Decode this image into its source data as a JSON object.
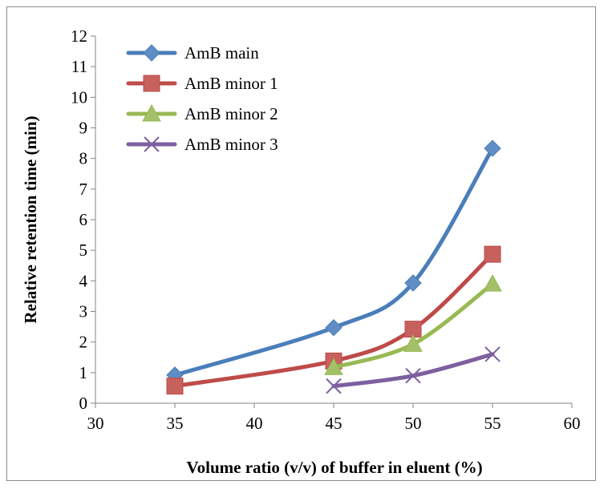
{
  "chart_data": {
    "type": "line",
    "title": "",
    "xlabel": "Volume ratio (v/v) of buffer in eluent (%)",
    "ylabel": "Relative retention time (min)",
    "xlim": [
      30,
      60
    ],
    "ylim": [
      0,
      12
    ],
    "xticks": [
      30,
      35,
      40,
      45,
      50,
      55,
      60
    ],
    "yticks": [
      0,
      1,
      2,
      3,
      4,
      5,
      6,
      7,
      8,
      9,
      10,
      11,
      12
    ],
    "grid": false,
    "legend_position": "top-left",
    "series": [
      {
        "name": "AmB main",
        "color": "#4a7ebb",
        "marker": "diamond",
        "points": [
          [
            35,
            0.92
          ],
          [
            45,
            2.47
          ],
          [
            50,
            3.93
          ],
          [
            55,
            8.33
          ]
        ]
      },
      {
        "name": "AmB minor 1",
        "color": "#be4b48",
        "marker": "square",
        "points": [
          [
            35,
            0.56
          ],
          [
            45,
            1.38
          ],
          [
            50,
            2.42
          ],
          [
            55,
            4.87
          ]
        ]
      },
      {
        "name": "AmB minor 2",
        "color": "#98b954",
        "marker": "triangle",
        "points": [
          [
            45,
            1.17
          ],
          [
            50,
            1.93
          ],
          [
            55,
            3.9
          ]
        ]
      },
      {
        "name": "AmB minor 3",
        "color": "#7d60a0",
        "marker": "x",
        "points": [
          [
            45,
            0.56
          ],
          [
            50,
            0.9
          ],
          [
            55,
            1.6
          ]
        ]
      }
    ]
  }
}
